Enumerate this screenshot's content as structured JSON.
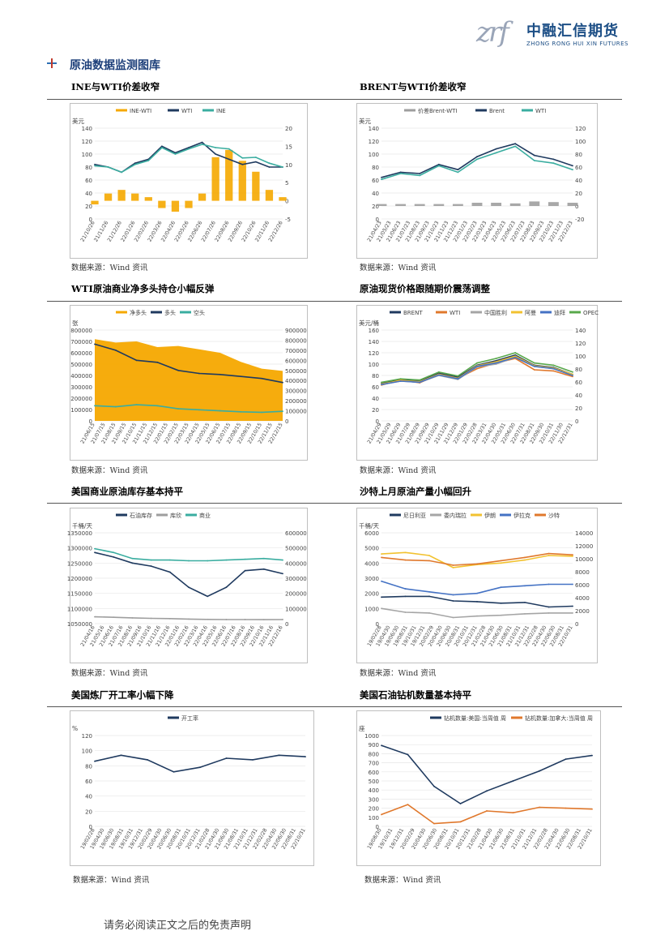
{
  "header": {
    "logo_mark": "zrf",
    "logo_cn": "中融汇信期货",
    "logo_en": "ZHONG RONG HUI XIN FUTURES"
  },
  "section_title": "原油数据监测图库",
  "source_text": "数据来源：Wind 资讯",
  "footer": "请务必阅读正文之后的免责声明",
  "colors": {
    "navy": "#1f3a5f",
    "teal": "#3aada0",
    "orange": "#f5a800",
    "gray": "#9e9e9e",
    "orange2": "#e0782c",
    "blue": "#4472c4",
    "green": "#59a84b",
    "yellow": "#f2c230",
    "gray2": "#a5a5a5"
  },
  "charts": [
    {
      "title": "INE与WTI价差收窄",
      "unit_left": "美元",
      "legend": [
        "INE-WTI",
        "WTI",
        "INE"
      ],
      "y_left": [
        "140",
        "120",
        "100",
        "80",
        "60",
        "40",
        "20",
        "0"
      ],
      "y_right": [
        "20",
        "15",
        "10",
        "5",
        "0",
        "-5"
      ],
      "x_labels": [
        "21/10/26",
        "21/11/26",
        "21/12/26",
        "22/01/26",
        "22/02/26",
        "22/03/26",
        "22/04/26",
        "22/05/26",
        "22/06/26",
        "22/07/26",
        "22/08/26",
        "22/09/26",
        "22/10/26",
        "22/11/26",
        "22/12/26"
      ]
    },
    {
      "title": "BRENT与WTI价差收窄",
      "unit_left": "美元",
      "legend": [
        "价差Brent-WTI",
        "Brent",
        "WTI"
      ],
      "y_left": [
        "140",
        "120",
        "100",
        "80",
        "60",
        "40",
        "20",
        "0"
      ],
      "y_right": [
        "120",
        "100",
        "80",
        "60",
        "40",
        "20",
        "0",
        "-20"
      ],
      "x_labels": [
        "21/04/23",
        "21/05/23",
        "21/06/23",
        "21/07/23",
        "21/08/23",
        "21/09/23",
        "21/10/23",
        "21/11/23",
        "21/12/23",
        "22/01/23",
        "22/02/23",
        "22/03/23",
        "22/04/23",
        "22/05/23",
        "22/06/23",
        "22/07/23",
        "22/08/23",
        "22/09/23",
        "22/10/23",
        "22/11/23",
        "22/12/23"
      ]
    },
    {
      "title": "WTI原油商业净多头持仓小幅反弹",
      "unit_left": "张",
      "legend": [
        "净多头",
        "多头",
        "空头"
      ],
      "y_left": [
        "800000",
        "700000",
        "600000",
        "500000",
        "400000",
        "300000",
        "200000",
        "100000",
        "0"
      ],
      "y_right": [
        "900000",
        "800000",
        "700000",
        "600000",
        "500000",
        "400000",
        "300000",
        "200000",
        "100000",
        "0"
      ],
      "x_labels": [
        "21/06/15",
        "21/07/15",
        "21/08/15",
        "21/09/15",
        "21/10/15",
        "21/11/15",
        "21/12/15",
        "22/01/15",
        "22/02/15",
        "22/03/15",
        "22/04/15",
        "22/05/15",
        "22/06/15",
        "22/07/15",
        "22/08/15",
        "22/09/15",
        "22/10/15",
        "22/11/15",
        "22/12/15"
      ]
    },
    {
      "title": "原油现货价格跟随期价震荡调整",
      "unit_left": "美元/桶",
      "legend": [
        "BRENT",
        "WTI",
        "中国胜利",
        "阿曼",
        "迪拜",
        "OPEC"
      ],
      "y_left": [
        "160",
        "140",
        "120",
        "100",
        "80",
        "60",
        "40",
        "20",
        "0"
      ],
      "y_right": [
        "140",
        "120",
        "100",
        "80",
        "60",
        "40",
        "20",
        "0"
      ],
      "x_labels": [
        "21/04/29",
        "21/05/29",
        "21/06/29",
        "21/07/29",
        "21/08/29",
        "21/09/29",
        "21/10/29",
        "21/11/29",
        "21/12/29",
        "22/01/29",
        "22/02/28",
        "22/03/31",
        "22/04/30",
        "22/05/31",
        "22/06/30",
        "22/07/31",
        "22/08/31",
        "22/09/30",
        "22/10/31",
        "22/11/30",
        "22/12/31"
      ]
    },
    {
      "title": "美国商业原油库存基本持平",
      "unit_left": "千桶/天",
      "legend": [
        "石油库存",
        "库欣",
        "商业"
      ],
      "y_left": [
        "1350000",
        "1300000",
        "1250000",
        "1200000",
        "1150000",
        "1100000",
        "1050000"
      ],
      "y_right": [
        "600000",
        "500000",
        "400000",
        "300000",
        "200000",
        "100000",
        "0"
      ],
      "x_labels": [
        "21/04/16",
        "21/05/16",
        "21/06/16",
        "21/07/16",
        "21/08/16",
        "21/09/16",
        "21/10/16",
        "21/11/16",
        "21/12/16",
        "22/01/16",
        "22/02/16",
        "22/03/16",
        "22/04/16",
        "22/05/16",
        "22/06/16",
        "22/07/16",
        "22/08/16",
        "22/09/16",
        "22/10/16",
        "22/11/16",
        "22/12/16"
      ]
    },
    {
      "title": "沙特上月原油产量小幅回升",
      "unit_left": "千桶/天",
      "legend": [
        "尼日利亚",
        "委内瑞拉",
        "伊朗",
        "伊拉克",
        "沙特"
      ],
      "y_left": [
        "6000",
        "5000",
        "4000",
        "3000",
        "2000",
        "1000",
        "0"
      ],
      "y_right": [
        "14000",
        "12000",
        "10000",
        "8000",
        "6000",
        "4000",
        "2000",
        "0"
      ],
      "x_labels": [
        "19/02/28",
        "19/04/30",
        "19/06/30",
        "19/08/31",
        "19/10/31",
        "19/12/31",
        "20/02/29",
        "20/04/30",
        "20/06/30",
        "20/08/31",
        "20/10/31",
        "20/12/31",
        "21/02/28",
        "21/04/30",
        "21/06/30",
        "21/08/31",
        "21/10/31",
        "21/12/31",
        "22/02/28",
        "22/04/30",
        "22/06/30",
        "22/08/31",
        "22/10/31"
      ]
    },
    {
      "title": "美国炼厂开工率小幅下降",
      "unit_left": "%",
      "legend": [
        "开工率"
      ],
      "y_left": [
        "120",
        "100",
        "80",
        "60",
        "40",
        "20",
        "0"
      ],
      "x_labels": [
        "19/02/28",
        "19/04/30",
        "19/06/30",
        "19/08/31",
        "19/10/31",
        "19/12/31",
        "20/02/29",
        "20/04/30",
        "20/06/30",
        "20/08/31",
        "20/10/31",
        "20/12/31",
        "21/02/28",
        "21/04/30",
        "21/06/30",
        "21/08/31",
        "21/10/31",
        "21/12/31",
        "22/02/28",
        "22/04/30",
        "22/06/30",
        "22/08/31",
        "22/10/31"
      ]
    },
    {
      "title": "美国石油钻机数量基本持平",
      "unit_left": "座",
      "legend": [
        "钻机数量:美国:当周值 周",
        "钻机数量:加拿大:当周值 周"
      ],
      "y_left": [
        "1000",
        "900",
        "800",
        "700",
        "600",
        "500",
        "400",
        "300",
        "200",
        "100",
        "0"
      ],
      "x_labels": [
        "19/08/30",
        "19/10/31",
        "19/12/31",
        "20/02/29",
        "20/04/30",
        "20/06/30",
        "20/08/31",
        "20/10/31",
        "20/12/31",
        "21/02/28",
        "21/04/30",
        "21/06/30",
        "21/08/31",
        "21/10/31",
        "21/12/31",
        "22/02/28",
        "22/04/30",
        "22/06/30",
        "22/08/31",
        "22/10/31"
      ]
    }
  ],
  "chart_data": [
    {
      "type": "line",
      "title": "INE与WTI价差收窄",
      "x": [
        "21/10/26",
        "21/11/26",
        "21/12/26",
        "22/01/26",
        "22/02/26",
        "22/03/26",
        "22/04/26",
        "22/05/26",
        "22/06/26",
        "22/07/26",
        "22/08/26",
        "22/09/26",
        "22/10/26",
        "22/11/26",
        "22/12/26"
      ],
      "series": [
        {
          "name": "INE-WTI",
          "type": "bar",
          "axis": "right",
          "values": [
            -1,
            2,
            3,
            2,
            1,
            -2,
            -3,
            -2,
            2,
            12,
            14,
            11,
            8,
            3,
            1
          ]
        },
        {
          "name": "WTI",
          "axis": "left",
          "values": [
            84,
            80,
            72,
            86,
            92,
            112,
            102,
            110,
            118,
            100,
            92,
            84,
            88,
            80,
            80
          ]
        },
        {
          "name": "INE",
          "axis": "left",
          "values": [
            82,
            80,
            72,
            84,
            90,
            110,
            100,
            108,
            115,
            110,
            108,
            94,
            95,
            86,
            80
          ]
        }
      ],
      "ylim_left": [
        0,
        140
      ],
      "ylim_right": [
        -5,
        20
      ]
    },
    {
      "type": "line",
      "title": "BRENT与WTI价差收窄",
      "x": [
        "21/04/23",
        "21/06/23",
        "21/08/23",
        "21/10/23",
        "21/12/23",
        "22/02/23",
        "22/04/23",
        "22/06/23",
        "22/08/23",
        "22/10/23",
        "22/12/23"
      ],
      "series": [
        {
          "name": "价差Brent-WTI",
          "type": "bar",
          "axis": "right",
          "values": [
            3,
            3,
            3,
            3,
            3,
            5,
            5,
            4,
            7,
            6,
            5
          ]
        },
        {
          "name": "Brent",
          "axis": "left",
          "values": [
            64,
            72,
            70,
            84,
            76,
            96,
            108,
            116,
            98,
            92,
            82
          ]
        },
        {
          "name": "WTI",
          "axis": "left",
          "values": [
            61,
            70,
            67,
            82,
            72,
            92,
            102,
            112,
            90,
            86,
            76
          ]
        }
      ],
      "ylim_left": [
        0,
        140
      ],
      "ylim_right": [
        -20,
        120
      ]
    },
    {
      "type": "area",
      "title": "WTI原油商业净多头持仓小幅反弹",
      "x": [
        "21/06/15",
        "21/08/15",
        "21/10/15",
        "21/12/15",
        "22/02/15",
        "22/04/15",
        "22/06/15",
        "22/08/15",
        "22/10/15",
        "22/12/15"
      ],
      "series": [
        {
          "name": "净多头",
          "axis": "left",
          "values": [
            720000,
            690000,
            700000,
            650000,
            660000,
            630000,
            600000,
            520000,
            460000,
            440000
          ]
        },
        {
          "name": "多头",
          "axis": "right",
          "values": [
            760000,
            700000,
            600000,
            580000,
            500000,
            470000,
            460000,
            440000,
            420000,
            380000
          ]
        },
        {
          "name": "空头",
          "axis": "right",
          "values": [
            150000,
            140000,
            160000,
            150000,
            120000,
            110000,
            100000,
            90000,
            85000,
            95000
          ]
        }
      ],
      "ylim_left": [
        0,
        800000
      ],
      "ylim_right": [
        0,
        900000
      ]
    },
    {
      "type": "line",
      "title": "原油现货价格跟随期价震荡调整",
      "x": [
        "21/04/29",
        "21/06/29",
        "21/08/29",
        "21/10/29",
        "21/12/29",
        "22/02/28",
        "22/04/30",
        "22/06/30",
        "22/08/31",
        "22/10/31",
        "22/12/31"
      ],
      "series": [
        {
          "name": "BRENT",
          "values": [
            66,
            73,
            70,
            84,
            77,
            98,
            106,
            116,
            98,
            94,
            82
          ]
        },
        {
          "name": "WTI",
          "values": [
            63,
            72,
            67,
            82,
            75,
            92,
            102,
            110,
            90,
            88,
            78
          ]
        },
        {
          "name": "中国胜利",
          "values": [
            64,
            70,
            68,
            80,
            73,
            95,
            100,
            112,
            96,
            92,
            80
          ]
        },
        {
          "name": "阿曼",
          "values": [
            65,
            71,
            69,
            82,
            75,
            97,
            104,
            114,
            97,
            93,
            82
          ]
        },
        {
          "name": "迪拜",
          "values": [
            64,
            70,
            68,
            81,
            74,
            96,
            102,
            112,
            96,
            92,
            80
          ]
        },
        {
          "name": "OPEC",
          "values": [
            68,
            74,
            72,
            86,
            79,
            102,
            110,
            120,
            102,
            98,
            86
          ]
        }
      ],
      "ylim": [
        0,
        160
      ]
    },
    {
      "type": "line",
      "title": "美国商业原油库存基本持平",
      "x": [
        "21/04/16",
        "21/06/16",
        "21/08/16",
        "21/10/16",
        "21/12/16",
        "22/02/16",
        "22/04/16",
        "22/06/16",
        "22/08/16",
        "22/10/16",
        "22/12/16"
      ],
      "series": [
        {
          "name": "石油库存",
          "axis": "left",
          "values": [
            1285000,
            1270000,
            1250000,
            1240000,
            1220000,
            1170000,
            1140000,
            1170000,
            1225000,
            1230000,
            1215000
          ]
        },
        {
          "name": "库欣",
          "axis": "right",
          "values": [
            45000,
            42000,
            38000,
            35000,
            33000,
            30000,
            28000,
            27000,
            27000,
            26000,
            27000
          ]
        },
        {
          "name": "商业",
          "axis": "right",
          "values": [
            495000,
            470000,
            430000,
            420000,
            420000,
            415000,
            415000,
            420000,
            425000,
            430000,
            420000
          ]
        }
      ],
      "ylim_left": [
        1050000,
        1350000
      ],
      "ylim_right": [
        0,
        600000
      ]
    },
    {
      "type": "line",
      "title": "沙特上月原油产量小幅回升",
      "x": [
        "19/02/28",
        "19/08/31",
        "20/02/29",
        "20/08/31",
        "21/02/28",
        "21/08/31",
        "22/02/28",
        "22/08/31",
        "22/10/31"
      ],
      "series": [
        {
          "name": "尼日利亚",
          "axis": "left",
          "values": [
            1750,
            1800,
            1800,
            1500,
            1450,
            1350,
            1400,
            1100,
            1150
          ]
        },
        {
          "name": "委内瑞拉",
          "axis": "left",
          "values": [
            1000,
            750,
            700,
            400,
            500,
            550,
            650,
            700,
            700
          ]
        },
        {
          "name": "伊朗",
          "axis": "left",
          "values": [
            4600,
            4700,
            4500,
            3700,
            3900,
            4000,
            4200,
            4500,
            4450
          ]
        },
        {
          "name": "伊拉克",
          "axis": "left",
          "values": [
            2800,
            2300,
            2100,
            1900,
            2000,
            2400,
            2500,
            2600,
            2600
          ]
        },
        {
          "name": "沙特",
          "axis": "right",
          "values": [
            10200,
            9800,
            9700,
            9000,
            9200,
            9700,
            10200,
            10800,
            10600
          ]
        }
      ],
      "ylim_left": [
        0,
        6000
      ],
      "ylim_right": [
        0,
        14000
      ]
    },
    {
      "type": "line",
      "title": "美国炼厂开工率小幅下降",
      "x": [
        "19/02/28",
        "19/08/31",
        "20/02/29",
        "20/08/31",
        "21/02/28",
        "21/08/31",
        "22/02/28",
        "22/08/31",
        "22/10/31"
      ],
      "series": [
        {
          "name": "开工率",
          "values": [
            86,
            94,
            88,
            72,
            78,
            90,
            88,
            94,
            92
          ]
        }
      ],
      "ylim": [
        0,
        120
      ]
    },
    {
      "type": "line",
      "title": "美国石油钻机数量基本持平",
      "x": [
        "19/08/30",
        "20/02/29",
        "20/04/30",
        "20/08/31",
        "21/02/28",
        "21/08/31",
        "22/02/28",
        "22/08/31",
        "22/10/31"
      ],
      "series": [
        {
          "name": "钻机数量:美国:当周值 周",
          "values": [
            890,
            790,
            440,
            250,
            390,
            500,
            610,
            740,
            780
          ]
        },
        {
          "name": "钻机数量:加拿大:当周值 周",
          "values": [
            130,
            240,
            30,
            50,
            170,
            150,
            210,
            200,
            190
          ]
        }
      ],
      "ylim": [
        0,
        1000
      ]
    }
  ]
}
